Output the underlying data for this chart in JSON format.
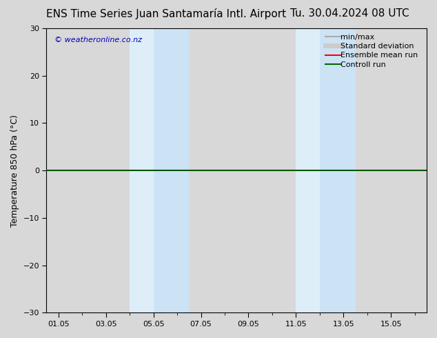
{
  "title_left": "ENS Time Series Juan Santamaría Intl. Airport",
  "title_right": "Tu. 30.04.2024 08 UTC",
  "ylabel": "Temperature 850 hPa (°C)",
  "watermark": "© weatheronline.co.nz",
  "ylim": [
    -30,
    30
  ],
  "yticks": [
    -30,
    -20,
    -10,
    0,
    10,
    20,
    30
  ],
  "xlim": [
    -0.5,
    15.5
  ],
  "xtick_labels": [
    "01.05",
    "03.05",
    "05.05",
    "07.05",
    "09.05",
    "11.05",
    "13.05",
    "15.05"
  ],
  "xtick_positions": [
    0,
    2,
    4,
    6,
    8,
    10,
    12,
    14
  ],
  "shaded_bands": [
    {
      "x_start": 3.0,
      "x_end": 4.0,
      "color": "#ddeef8"
    },
    {
      "x_start": 4.0,
      "x_end": 5.5,
      "color": "#cce3f5"
    },
    {
      "x_start": 10.0,
      "x_end": 11.0,
      "color": "#ddeef8"
    },
    {
      "x_start": 11.0,
      "x_end": 12.5,
      "color": "#cce3f5"
    }
  ],
  "plot_bg_color": "#d8d8d8",
  "fig_bg_color": "#d8d8d8",
  "zero_line_color": "#005500",
  "legend_items": [
    {
      "label": "min/max",
      "color": "#aaaaaa",
      "lw": 1.5
    },
    {
      "label": "Standard deviation",
      "color": "#cccccc",
      "lw": 5
    },
    {
      "label": "Ensemble mean run",
      "color": "#ff0000",
      "lw": 1.5
    },
    {
      "label": "Controll run",
      "color": "#006600",
      "lw": 1.5
    }
  ],
  "title_fontsize": 11,
  "label_fontsize": 9,
  "tick_fontsize": 8,
  "watermark_color": "#0000bb",
  "watermark_fontsize": 8
}
